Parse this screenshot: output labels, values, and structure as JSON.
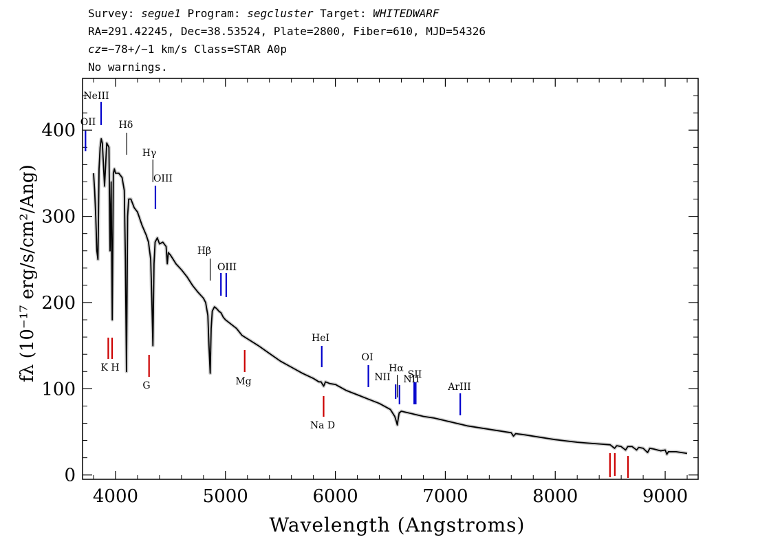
{
  "header": {
    "line1": {
      "survey_label": "Survey: ",
      "survey": "segue1",
      "program_label": " Program: ",
      "program": "segcluster",
      "target_label": " Target: ",
      "target": "WHITEDWARF"
    },
    "line2": "RA=291.42245, Dec=38.53524, Plate=2800, Fiber=610, MJD=54326",
    "line3": {
      "cz_label": "cz",
      "cz_value": "=−78+/−1",
      "rest": " km/s Class=STAR A0p"
    },
    "line4": "No warnings."
  },
  "chart_data": {
    "type": "line",
    "xlabel": "Wavelength (Angstroms)",
    "ylabel": "fλ (10⁻¹⁷ erg/s/cm²/Ang)",
    "xlim": [
      3700,
      9300
    ],
    "ylim": [
      -5,
      460
    ],
    "x_ticks": [
      4000,
      5000,
      6000,
      7000,
      8000,
      9000
    ],
    "y_ticks": [
      0,
      100,
      200,
      300,
      400
    ],
    "grid": false,
    "colors": {
      "spectrum": "#000000",
      "error_band": "#aaaaaa",
      "emission": "#0000cc",
      "absorption": "#cc0000",
      "hydrogen": "#000000"
    },
    "series": [
      {
        "x": [
          3800,
          3810,
          3820,
          3830,
          3840,
          3850,
          3860,
          3870,
          3880,
          3890,
          3900,
          3920,
          3940,
          3950,
          3960,
          3970,
          3980,
          3990,
          4000,
          4030,
          4060,
          4080,
          4090,
          4100,
          4110,
          4120,
          4140,
          4170,
          4200,
          4240,
          4280,
          4300,
          4320,
          4330,
          4340,
          4350,
          4360,
          4380,
          4400,
          4430,
          4460,
          4471,
          4480,
          4500,
          4550,
          4600,
          4650,
          4700,
          4750,
          4800,
          4820,
          4840,
          4850,
          4861,
          4870,
          4880,
          4900,
          4920,
          4940,
          4960,
          4980,
          5000,
          5050,
          5100,
          5150,
          5200,
          5300,
          5400,
          5500,
          5600,
          5700,
          5800,
          5850,
          5870,
          5893,
          5910,
          5950,
          6000,
          6100,
          6200,
          6300,
          6400,
          6500,
          6540,
          6555,
          6563,
          6570,
          6580,
          6600,
          6700,
          6800,
          6900,
          7000,
          7100,
          7200,
          7400,
          7600,
          7620,
          7640,
          7700,
          7800,
          8000,
          8200,
          8400,
          8500,
          8540,
          8560,
          8600,
          8640,
          8660,
          8700,
          8740,
          8760,
          8800,
          8840,
          8860,
          8900,
          8960,
          9000,
          9015,
          9030,
          9100,
          9200
        ],
        "y": [
          350,
          330,
          300,
          260,
          250,
          355,
          380,
          390,
          385,
          360,
          335,
          385,
          380,
          260,
          340,
          180,
          350,
          355,
          350,
          350,
          345,
          330,
          250,
          120,
          300,
          320,
          320,
          310,
          305,
          290,
          278,
          270,
          250,
          205,
          150,
          245,
          270,
          275,
          268,
          270,
          265,
          245,
          258,
          255,
          245,
          238,
          230,
          220,
          212,
          205,
          200,
          185,
          150,
          118,
          170,
          190,
          195,
          193,
          190,
          188,
          183,
          180,
          175,
          170,
          162,
          158,
          150,
          141,
          132,
          125,
          118,
          112,
          108,
          108,
          103,
          108,
          106,
          105,
          98,
          93,
          88,
          83,
          76,
          68,
          62,
          58,
          64,
          72,
          74,
          71,
          68,
          66,
          63,
          60,
          57,
          53,
          49,
          45,
          48,
          47,
          45,
          41,
          38,
          36,
          35,
          31,
          34,
          33,
          29,
          33,
          33,
          29,
          32,
          31,
          26,
          31,
          30,
          28,
          29,
          24,
          27,
          27,
          25
        ]
      }
    ],
    "line_markers": [
      {
        "label": "OII",
        "x": 3727,
        "color": "emission"
      },
      {
        "label": "NeIII",
        "x": 3869,
        "color": "emission"
      },
      {
        "label": "Hδ",
        "x": 4102,
        "color": "hydrogen"
      },
      {
        "label": "Hγ",
        "x": 4340,
        "color": "hydrogen"
      },
      {
        "label": "OIII",
        "x": 4363,
        "color": "emission"
      },
      {
        "label": "Hβ",
        "x": 4861,
        "color": "hydrogen"
      },
      {
        "label": "OIII",
        "x": 4959,
        "color": "emission"
      },
      {
        "label": "OIII_b",
        "x": 5007,
        "color": "emission"
      },
      {
        "label": "K",
        "x": 3934,
        "color": "absorption"
      },
      {
        "label": "H",
        "x": 3969,
        "color": "absorption"
      },
      {
        "label": "G",
        "x": 4305,
        "color": "absorption"
      },
      {
        "label": "Mg",
        "x": 5175,
        "color": "absorption"
      },
      {
        "label": "HeI",
        "x": 5876,
        "color": "emission"
      },
      {
        "label": "Na  D",
        "x": 5893,
        "color": "absorption"
      },
      {
        "label": "OI",
        "x": 6300,
        "color": "emission"
      },
      {
        "label": "NII",
        "x": 6548,
        "color": "emission"
      },
      {
        "label": "Hα",
        "x": 6563,
        "color": "hydrogen"
      },
      {
        "label": "NII",
        "x": 6583,
        "color": "emission"
      },
      {
        "label": "SII",
        "x": 6717,
        "color": "emission"
      },
      {
        "label": "SII_b",
        "x": 6731,
        "color": "emission"
      },
      {
        "label": "ArIII",
        "x": 7136,
        "color": "emission"
      },
      {
        "label": "CaII_1",
        "x": 8498,
        "color": "absorption"
      },
      {
        "label": "CaII_2",
        "x": 8542,
        "color": "absorption"
      },
      {
        "label": "CaII_3",
        "x": 8662,
        "color": "absorption"
      }
    ]
  }
}
